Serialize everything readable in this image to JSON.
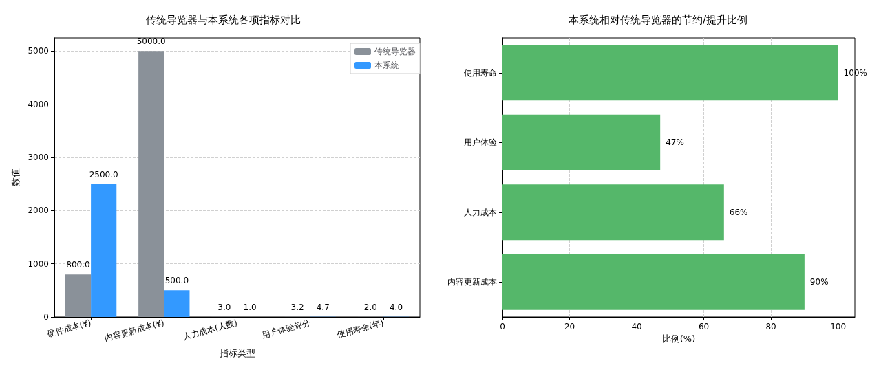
{
  "chart_data": [
    {
      "type": "bar",
      "title": "传统导览器与本系统各项指标对比",
      "xlabel": "指标类型",
      "ylabel": "数值",
      "categories": [
        "硬件成本(¥)",
        "内容更新成本(¥)",
        "人力成本(人数)",
        "用户体验评分",
        "使用寿命(年)"
      ],
      "series": [
        {
          "name": "传统导览器",
          "color": "#8a9199",
          "values": [
            800,
            5000,
            3,
            3.2,
            2
          ],
          "value_labels": [
            "800.0",
            "5000.0",
            "3.0",
            "3.2",
            "2.0"
          ]
        },
        {
          "name": "本系统",
          "color": "#3399ff",
          "values": [
            2500,
            500,
            1,
            4.7,
            4
          ],
          "value_labels": [
            "2500.0",
            "500.0",
            "1.0",
            "4.7",
            "4.0"
          ]
        }
      ],
      "ylim": [
        0,
        5250
      ],
      "yticks": [
        0,
        1000,
        2000,
        3000,
        4000,
        5000
      ],
      "grid": "y",
      "legend": "top right"
    },
    {
      "type": "bar",
      "orientation": "horizontal",
      "title": "本系统相对传统导览器的节约/提升比例",
      "xlabel": "比例(%)",
      "categories": [
        "使用寿命",
        "用户体验",
        "人力成本",
        "内容更新成本"
      ],
      "series": [
        {
          "color": "#55b76a",
          "values": [
            100,
            47,
            66,
            90
          ],
          "value_labels": [
            "100%",
            "47%",
            "66%",
            "90%"
          ]
        }
      ],
      "xlim": [
        0,
        105
      ],
      "xticks": [
        0,
        20,
        40,
        60,
        80,
        100
      ],
      "grid": "x"
    }
  ]
}
